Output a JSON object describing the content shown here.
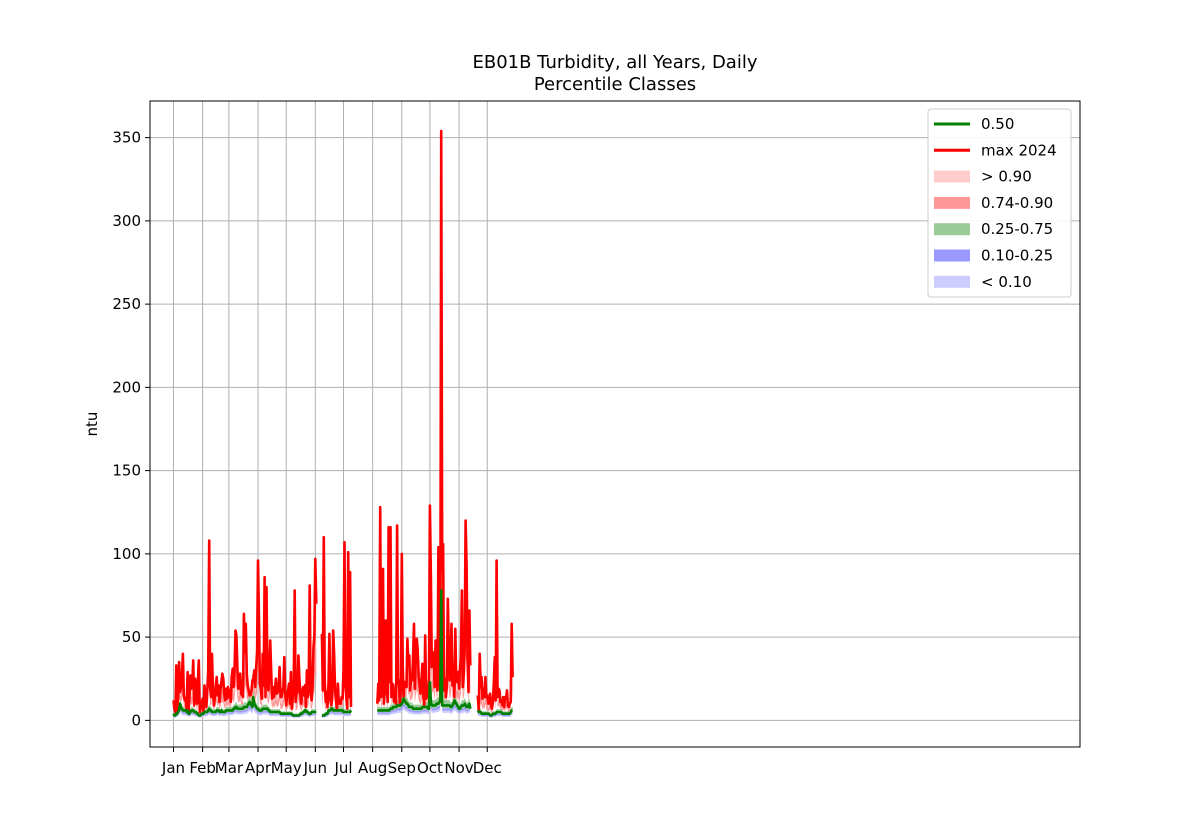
{
  "chart_data": {
    "type": "area",
    "title": "EB01B Turbidity, all Years, Daily",
    "subtitle": "Percentile Classes",
    "xlabel": "",
    "ylabel": "ntu",
    "ylim": [
      -16,
      372
    ],
    "xlim": [
      -25,
      965
    ],
    "grid": true,
    "legend_position": "top-right",
    "x_ticks": [
      {
        "label": "Jan",
        "day": 0
      },
      {
        "label": "Feb",
        "day": 31
      },
      {
        "label": "Mar",
        "day": 59
      },
      {
        "label": "Apr",
        "day": 90
      },
      {
        "label": "May",
        "day": 120
      },
      {
        "label": "Jun",
        "day": 151
      },
      {
        "label": "Jul",
        "day": 181
      },
      {
        "label": "Aug",
        "day": 212
      },
      {
        "label": "Sep",
        "day": 243
      },
      {
        "label": "Oct",
        "day": 273
      },
      {
        "label": "Nov",
        "day": 304
      },
      {
        "label": "Dec",
        "day": 334
      }
    ],
    "y_ticks": [
      0,
      50,
      100,
      150,
      200,
      250,
      300,
      350
    ],
    "legend": [
      {
        "label": "0.50",
        "kind": "line",
        "color": "#008000"
      },
      {
        "label": "max 2024",
        "kind": "line",
        "color": "#ff0000"
      },
      {
        "label": "> 0.90",
        "kind": "patch",
        "color": "#ffcccc"
      },
      {
        "label": "0.74-0.90",
        "kind": "patch",
        "color": "#ff9999"
      },
      {
        "label": "0.25-0.75",
        "kind": "patch",
        "color": "#99cc99"
      },
      {
        "label": "0.10-0.25",
        "kind": "patch",
        "color": "#9999ff"
      },
      {
        "label": "< 0.10",
        "kind": "patch",
        "color": "#ccccff"
      }
    ],
    "segments": [
      {
        "start_day": 0,
        "max": [
          12,
          7,
          5,
          33,
          6,
          14,
          35,
          17,
          20,
          27,
          40,
          15,
          12,
          13,
          7,
          29,
          4,
          15,
          27,
          19,
          20,
          36,
          9,
          25,
          22,
          10,
          23,
          36,
          5,
          8,
          9,
          13,
          5,
          21,
          11,
          8,
          18,
          29,
          108,
          20,
          14,
          40,
          19,
          9,
          14,
          21,
          26,
          15,
          21,
          11,
          18,
          23,
          28,
          25,
          16,
          12,
          19,
          13,
          20,
          14,
          18,
          11,
          26,
          31,
          20,
          29,
          54,
          51,
          31,
          19,
          21,
          28,
          16,
          15,
          14,
          64,
          41,
          58,
          28,
          21,
          18,
          15,
          15,
          18,
          24,
          25,
          30,
          20,
          32,
          41,
          96,
          60,
          22,
          19,
          13,
          40,
          21,
          86,
          14,
          80,
          26,
          18,
          28,
          48,
          29,
          13,
          20,
          14,
          18,
          25,
          16,
          17,
          20,
          32,
          14,
          14,
          17,
          20,
          38,
          16,
          9,
          15,
          18,
          22,
          10,
          29,
          7,
          14,
          20,
          78,
          11,
          16,
          17,
          39,
          25,
          16,
          10,
          17,
          20,
          15,
          21,
          8,
          30,
          14,
          26,
          81,
          17,
          12,
          20,
          44,
          51,
          97,
          70
        ],
        "median": [
          4,
          3,
          3,
          4,
          4,
          5,
          6,
          10,
          8,
          7,
          6,
          6,
          6,
          6,
          5,
          6,
          4,
          4,
          5,
          6,
          6,
          6,
          5,
          5,
          5,
          4,
          4,
          3,
          3,
          3,
          4,
          4,
          4,
          5,
          5,
          5,
          5,
          6,
          7,
          6,
          6,
          5,
          5,
          5,
          5,
          5,
          6,
          6,
          6,
          5,
          5,
          6,
          5,
          5,
          5,
          5,
          6,
          6,
          6,
          6,
          6,
          6,
          6,
          6,
          7,
          7,
          8,
          8,
          7,
          7,
          7,
          7,
          7,
          7,
          7,
          8,
          8,
          8,
          8,
          9,
          10,
          11,
          10,
          9,
          8,
          14,
          10,
          9,
          8,
          7,
          7,
          6,
          6,
          6,
          6,
          7,
          7,
          7,
          7,
          7,
          7,
          6,
          6,
          5,
          5,
          5,
          5,
          5,
          5,
          5,
          5,
          5,
          5,
          5,
          4,
          4,
          4,
          4,
          4,
          4,
          4,
          4,
          4,
          4,
          4,
          4,
          4,
          3,
          3,
          3,
          3,
          3,
          3,
          3,
          3,
          4,
          4,
          4,
          5,
          5,
          6,
          6,
          5,
          5,
          4,
          4,
          4,
          5,
          5,
          5,
          5,
          5,
          5
        ]
      },
      {
        "start_day": 158,
        "max": [
          52,
          18,
          110,
          24,
          11,
          17,
          8,
          22,
          52,
          12,
          9,
          13,
          54,
          40,
          18,
          12,
          6,
          22,
          10,
          12,
          10,
          14,
          13,
          30,
          107,
          22,
          14,
          7,
          101,
          14,
          89,
          8
        ],
        "median": [
          3,
          3,
          3,
          3,
          4,
          4,
          4,
          6,
          6,
          6,
          7,
          7,
          6,
          6,
          6,
          6,
          6,
          6,
          6,
          6,
          6,
          6,
          6,
          5,
          5,
          5,
          5,
          5,
          5,
          5,
          5,
          6
        ]
      },
      {
        "start_day": 217,
        "max": [
          10,
          22,
          12,
          128,
          14,
          17,
          91,
          10,
          18,
          60,
          20,
          11,
          116,
          23,
          116,
          14,
          22,
          21,
          11,
          17,
          10,
          117,
          22,
          24,
          9,
          18,
          100,
          34,
          14,
          23,
          22,
          20,
          49,
          33,
          39,
          18,
          27,
          24,
          37,
          58,
          19,
          38,
          49,
          42,
          26,
          21,
          16,
          24,
          34,
          14,
          9,
          51,
          13,
          14,
          17,
          25,
          129,
          85,
          32,
          41,
          38,
          20,
          48,
          29,
          18,
          104,
          78,
          11,
          354,
          90,
          106,
          18,
          25,
          14,
          20,
          73,
          46,
          24,
          32,
          58,
          21,
          30,
          14,
          55,
          24,
          23,
          29,
          19,
          31,
          37,
          78,
          20,
          28,
          44,
          120,
          92,
          39,
          17,
          66,
          33
        ],
        "median": [
          6,
          6,
          6,
          6,
          6,
          6,
          6,
          6,
          6,
          6,
          6,
          6,
          6,
          6,
          7,
          7,
          7,
          8,
          8,
          8,
          8,
          9,
          9,
          9,
          9,
          9,
          10,
          11,
          13,
          12,
          11,
          10,
          10,
          9,
          8,
          8,
          8,
          8,
          7,
          7,
          7,
          7,
          7,
          7,
          7,
          7,
          7,
          7,
          8,
          8,
          8,
          8,
          8,
          8,
          7,
          7,
          23,
          11,
          9,
          9,
          9,
          9,
          9,
          10,
          10,
          10,
          11,
          12,
          78,
          9,
          9,
          9,
          9,
          9,
          9,
          9,
          9,
          9,
          8,
          8,
          9,
          10,
          12,
          11,
          10,
          9,
          8,
          7,
          7,
          8,
          9,
          9,
          9,
          10,
          9,
          8,
          8,
          9,
          10,
          7
        ]
      },
      {
        "start_day": 324,
        "max": [
          15,
          5,
          40,
          20,
          26,
          13,
          19,
          14,
          26,
          14,
          15,
          10,
          11,
          16,
          9,
          7,
          11,
          22,
          38,
          12,
          96,
          14,
          19,
          18,
          11,
          12,
          9,
          14,
          8,
          14,
          13,
          18,
          9,
          8,
          10,
          11,
          58,
          26
        ],
        "median": [
          6,
          5,
          5,
          5,
          4,
          4,
          4,
          4,
          4,
          4,
          4,
          4,
          4,
          3,
          3,
          3,
          4,
          4,
          4,
          4,
          5,
          5,
          5,
          5,
          5,
          5,
          4,
          4,
          4,
          4,
          4,
          4,
          4,
          4,
          4,
          5,
          6,
          6
        ]
      }
    ]
  }
}
